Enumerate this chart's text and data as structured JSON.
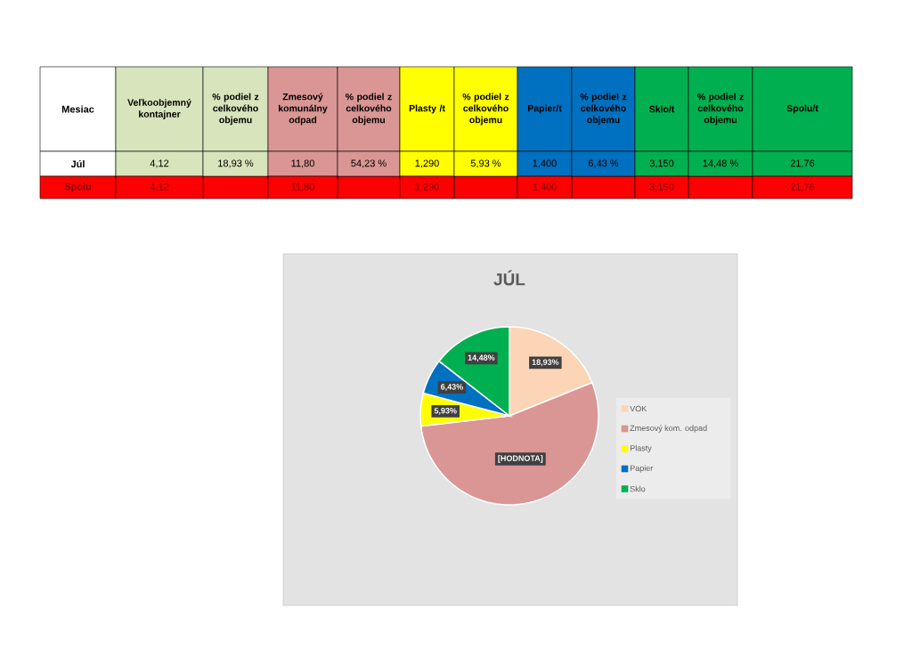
{
  "chart_data": [
    {
      "type": "other",
      "ylabel": "Mesiac",
      "categories": [
        "Veľkoobjemný kontajner",
        "% podiel z celkového objemu",
        "Zmesový komunálny odpad",
        "% podiel z celkového objemu",
        "Plasty /t",
        "% podiel z celkového objemu",
        "Papier/t",
        "% podiel z celkového objemu",
        "Sklo/t",
        "% podiel z celkového objemu",
        "Spolu/t"
      ],
      "y_categories": [
        "Júl",
        "Spolu"
      ],
      "cell_labels": [
        [
          "4,12",
          "18,93 %",
          "11,80",
          "54,23 %",
          "1,290",
          "5,93 %",
          "1,400",
          "6,43 %",
          "3,150",
          "14,48 %",
          "21,76"
        ],
        [
          "4,12",
          null,
          "11,80",
          null,
          "1,290",
          null,
          "1,400",
          null,
          "3,150",
          null,
          "21,76"
        ]
      ],
      "colors": [
        [
          "#d8e4bc",
          "#d8e4bc",
          "#da9694",
          "#da9694",
          "#ffff00",
          "#ffff00",
          "#0070c0",
          "#0070c0",
          "#00b050",
          "#00b050",
          "#00b050"
        ],
        [
          "#ff0000",
          "#ff0000",
          "#ff0000",
          "#ff0000",
          "#ff0000",
          "#ff0000",
          "#ff0000",
          "#ff0000",
          "#ff0000",
          "#ff0000",
          "#ff0000"
        ]
      ]
    },
    {
      "type": "pie",
      "title": "JÚL",
      "categories": [
        "VOK",
        "Zmesový kom. odpad",
        "Plasty",
        "Papier",
        "Sklo"
      ],
      "values": [
        18.93,
        54.23,
        5.93,
        6.43,
        14.48
      ],
      "colors": [
        "#fbd5b5",
        "#da9694",
        "#ffff00",
        "#0070c0",
        "#00b050"
      ],
      "value_labels": [
        "18,93%",
        "[HODNOTA]",
        "5,93%",
        "6,43%",
        "14,48%"
      ],
      "legend": "right"
    }
  ]
}
